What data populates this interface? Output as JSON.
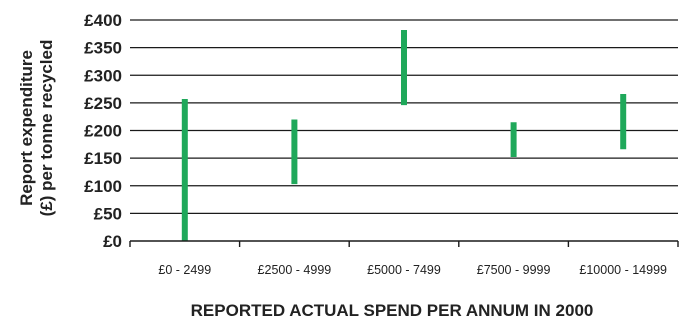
{
  "chart_data": {
    "type": "bar",
    "subtype": "floating-range",
    "title": "",
    "xlabel": "REPORTED ACTUAL SPEND PER ANNUM IN 2000",
    "ylabel_lines": [
      "Report expenditure",
      "(£) per tonne recycled"
    ],
    "categories": [
      "£0 - 2499",
      "£2500 - 4999",
      "£5000 - 7499",
      "£7500 - 9999",
      "£10000 - 14999"
    ],
    "ranges": [
      {
        "low": 0,
        "high": 257
      },
      {
        "low": 103,
        "high": 220
      },
      {
        "low": 246,
        "high": 382
      },
      {
        "low": 152,
        "high": 215
      },
      {
        "low": 166,
        "high": 266
      }
    ],
    "ylim": [
      0,
      400
    ],
    "yticks": [
      0,
      50,
      100,
      150,
      200,
      250,
      300,
      350,
      400
    ],
    "ytick_labels": [
      "£0",
      "£50",
      "£100",
      "£150",
      "£200",
      "£250",
      "£300",
      "£350",
      "£400"
    ],
    "grid": true,
    "bar_color": "#1fa85a"
  }
}
